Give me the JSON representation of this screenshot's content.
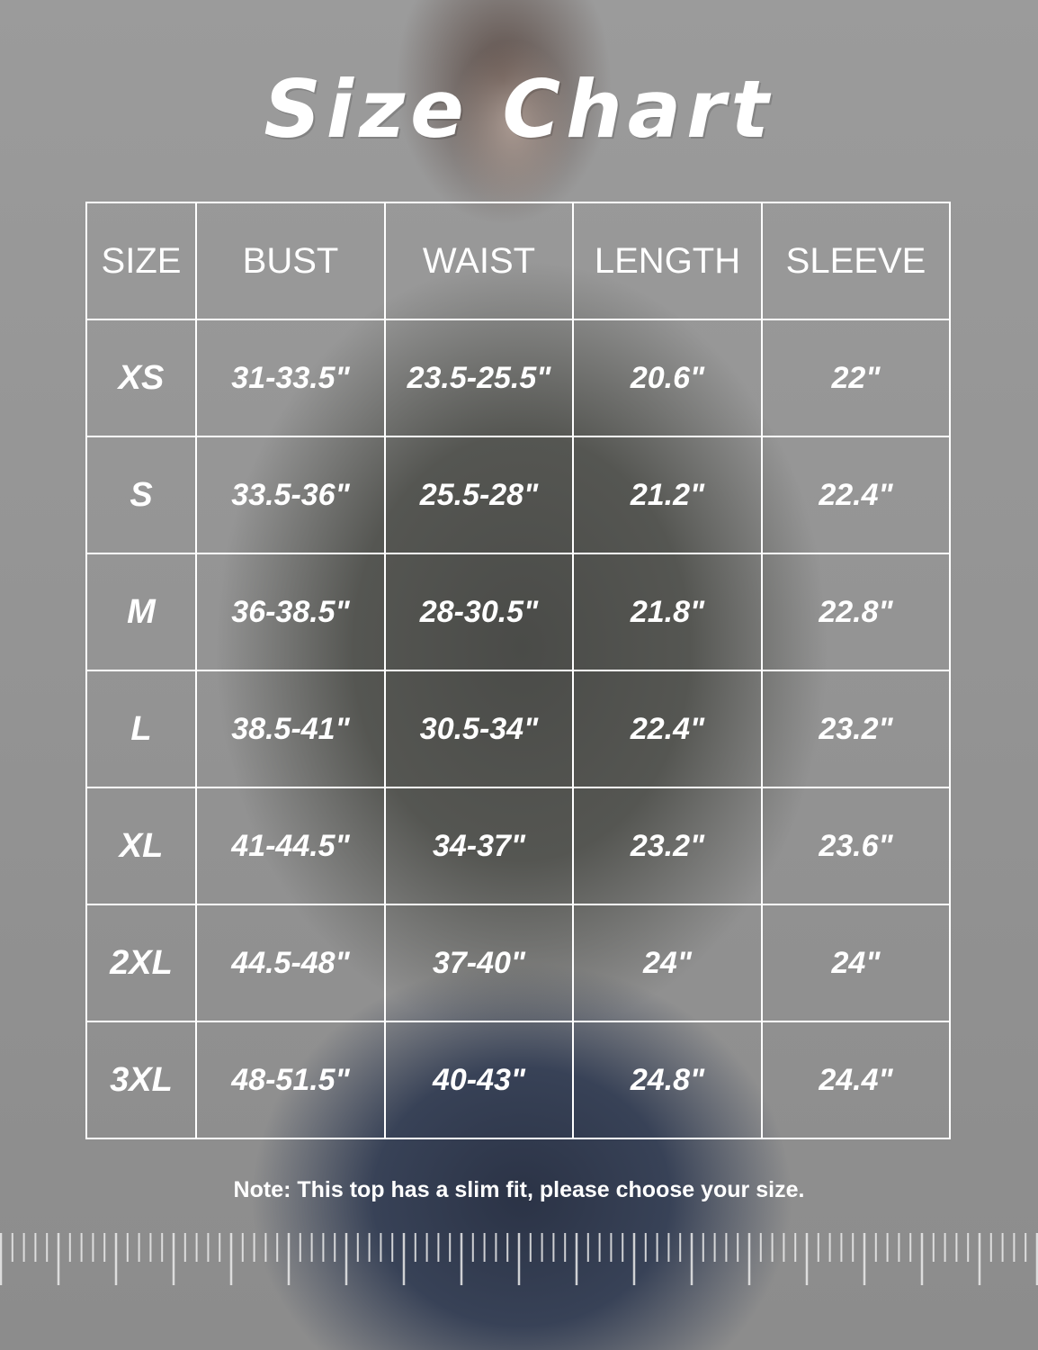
{
  "title": "Size Chart",
  "table": {
    "headers": [
      "SIZE",
      "BUST",
      "WAIST",
      "LENGTH",
      "SLEEVE"
    ],
    "rows": [
      [
        "XS",
        "31-33.5\"",
        "23.5-25.5\"",
        "20.6\"",
        "22\""
      ],
      [
        "S",
        "33.5-36\"",
        "25.5-28\"",
        "21.2\"",
        "22.4\""
      ],
      [
        "M",
        "36-38.5\"",
        "28-30.5\"",
        "21.8\"",
        "22.8\""
      ],
      [
        "L",
        "38.5-41\"",
        "30.5-34\"",
        "22.4\"",
        "23.2\""
      ],
      [
        "XL",
        "41-44.5\"",
        "34-37\"",
        "23.2\"",
        "23.6\""
      ],
      [
        "2XL",
        "44.5-48\"",
        "37-40\"",
        "24\"",
        "24\""
      ],
      [
        "3XL",
        "48-51.5\"",
        "40-43\"",
        "24.8\"",
        "24.4\""
      ]
    ]
  },
  "note": "Note: This top has a slim fit, please choose your size.",
  "colors": {
    "text": "#ffffff",
    "background": "#8f8f8f"
  }
}
